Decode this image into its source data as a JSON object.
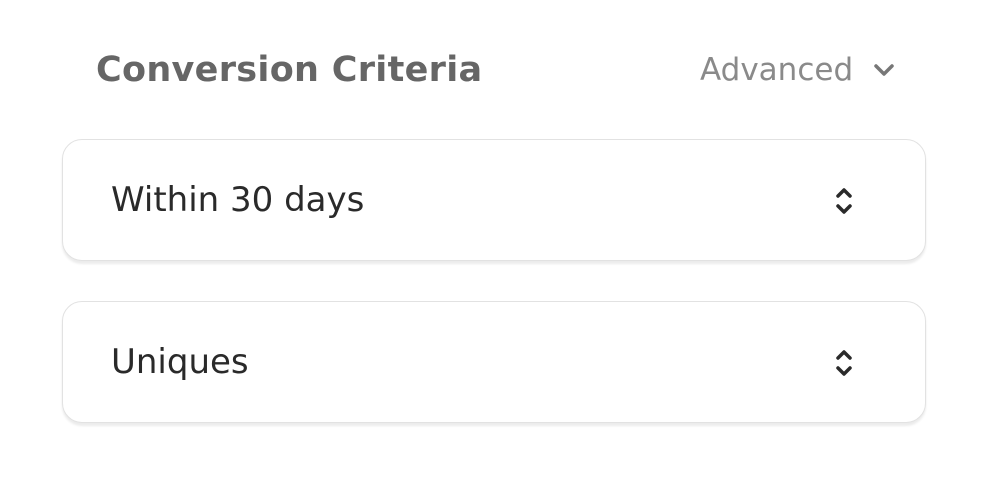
{
  "header": {
    "title": "Conversion Criteria",
    "advanced_label": "Advanced"
  },
  "selects": [
    {
      "value": "Within 30 days",
      "icon": "up-down-chevron-icon"
    },
    {
      "value": "Uniques",
      "icon": "up-down-chevron-icon"
    }
  ]
}
